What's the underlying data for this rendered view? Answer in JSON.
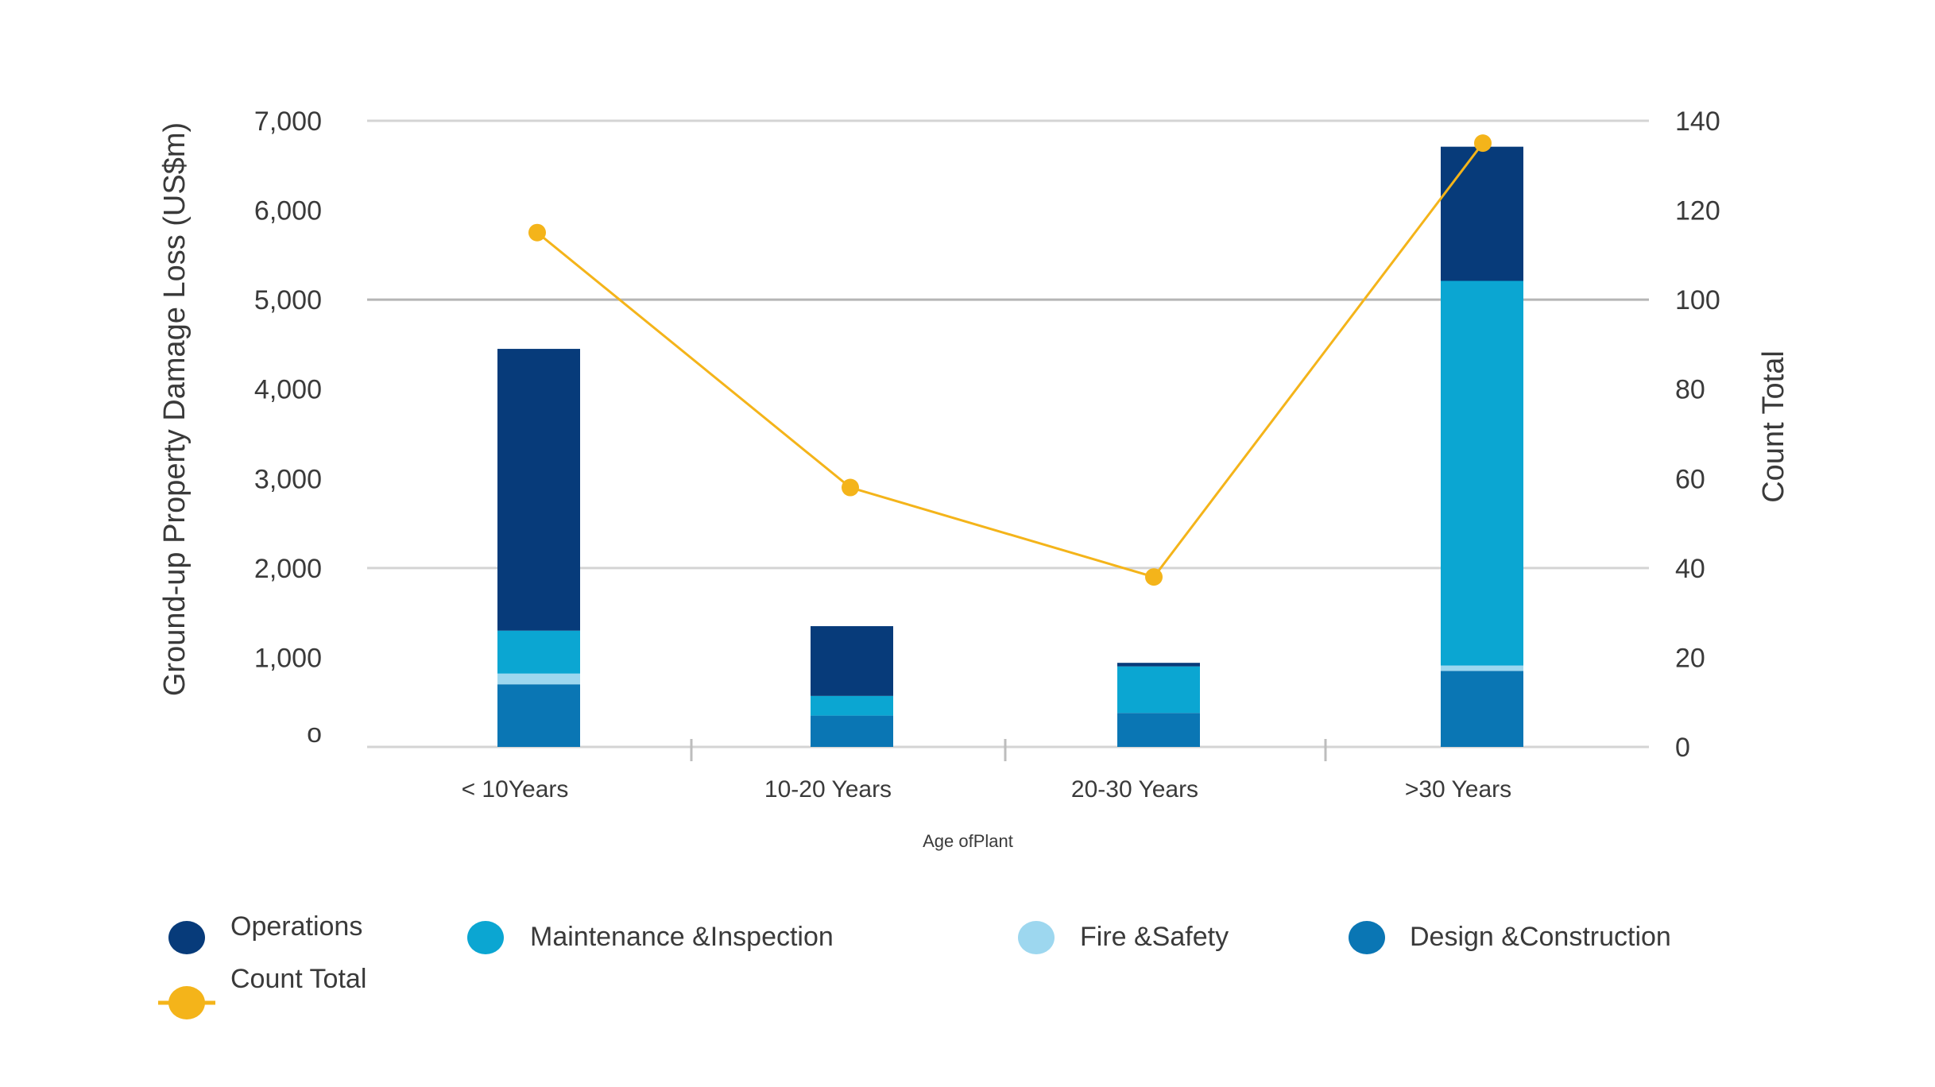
{
  "chart_data": {
    "type": "bar",
    "stacked": true,
    "categories": [
      "< 10Years",
      "10-20 Years",
      "20-30 Years",
      ">30 Years"
    ],
    "series": [
      {
        "name": "Design &Construction",
        "values": [
          700,
          350,
          380,
          850
        ],
        "color": "#0a76b4"
      },
      {
        "name": "Fire &Safety",
        "values": [
          120,
          0,
          0,
          60
        ],
        "color": "#9dd7ef"
      },
      {
        "name": "Maintenance &Inspection",
        "values": [
          480,
          220,
          520,
          4300
        ],
        "color": "#0ba6d2"
      },
      {
        "name": "Operations",
        "values": [
          3150,
          780,
          40,
          1500
        ],
        "color": "#073b7a"
      }
    ],
    "line_series": {
      "name": "Count Total",
      "values": [
        115,
        58,
        38,
        135
      ],
      "color": "#f4b41a",
      "axis": "right"
    },
    "ylabel": "Ground-up Property Damage Loss (US$m)",
    "y2label": "Count Total",
    "xlabel": "Age ofPlant",
    "ylim": [
      0,
      7000
    ],
    "y2lim": [
      0,
      140
    ],
    "yticks": [
      "o",
      "1,000",
      "2,000",
      "3,000",
      "4,000",
      "5,000",
      "6,000",
      "7,000"
    ],
    "y2ticks": [
      "0",
      "20",
      "40",
      "60",
      "80",
      "100",
      "120",
      "140"
    ],
    "legend_order": [
      "Operations",
      "Maintenance &Inspection",
      "Fire &Safety",
      "Design &Construction",
      "Count Total"
    ],
    "legend_position": "bottom",
    "grid": true
  }
}
